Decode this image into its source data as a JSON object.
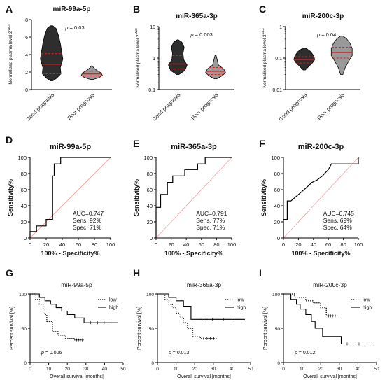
{
  "panels": [
    {
      "letter": "A",
      "type": "violin",
      "title": "miR-99a-5p",
      "ylabel": "Normalised plasma level 2",
      "ylabel_sup": "-ΔCt",
      "scale": "linear",
      "ylim": [
        0,
        8
      ],
      "yticks": [
        "0",
        "2",
        "4",
        "6",
        "8"
      ],
      "pvalue": "p = 0.03",
      "groups": [
        {
          "name": "Good prognosis",
          "fill": "#2e2e2e",
          "median": 2.9,
          "q1": 1.8,
          "q3": 4.1,
          "profile": [
            [
              1.0,
              0.1
            ],
            [
              1.3,
              0.4
            ],
            [
              1.8,
              0.75
            ],
            [
              2.5,
              0.7
            ],
            [
              3.5,
              0.9
            ],
            [
              4.4,
              0.8
            ],
            [
              5.3,
              0.7
            ],
            [
              6.2,
              0.55
            ],
            [
              7.0,
              0.35
            ],
            [
              7.3,
              0.1
            ]
          ]
        },
        {
          "name": "Poor prognosis",
          "fill": "#999999",
          "median": 1.8,
          "q1": 1.55,
          "q3": 2.1,
          "profile": [
            [
              1.15,
              0.1
            ],
            [
              1.35,
              0.55
            ],
            [
              1.6,
              0.85
            ],
            [
              1.9,
              0.75
            ],
            [
              2.2,
              0.4
            ],
            [
              2.5,
              0.15
            ],
            [
              2.7,
              0.05
            ]
          ]
        }
      ]
    },
    {
      "letter": "B",
      "type": "violin",
      "title": "miR-365a-3p",
      "ylabel": "Normalised plasma level 2",
      "ylabel_sup": "-ΔCt",
      "scale": "log",
      "ylim": [
        0.1,
        10
      ],
      "yticks": [
        "0.1",
        "1",
        "10"
      ],
      "pvalue": "p = 0.003",
      "groups": [
        {
          "name": "Good prognosis",
          "fill": "#2e2e2e",
          "median": 0.65,
          "q1": 0.45,
          "q3": 1.2,
          "profile": [
            [
              0.3,
              0.1
            ],
            [
              0.4,
              0.6
            ],
            [
              0.6,
              0.8
            ],
            [
              0.9,
              0.5
            ],
            [
              1.4,
              0.45
            ],
            [
              2.2,
              0.55
            ],
            [
              3.2,
              0.35
            ],
            [
              3.8,
              0.05
            ]
          ]
        },
        {
          "name": "Poor prognosis",
          "fill": "#999999",
          "median": 0.38,
          "q1": 0.3,
          "q3": 0.5,
          "profile": [
            [
              0.22,
              0.1
            ],
            [
              0.28,
              0.6
            ],
            [
              0.35,
              0.85
            ],
            [
              0.45,
              0.7
            ],
            [
              0.6,
              0.25
            ],
            [
              0.85,
              0.15
            ],
            [
              1.2,
              0.05
            ]
          ]
        }
      ]
    },
    {
      "letter": "C",
      "type": "violin",
      "title": "miR-200c-3p",
      "ylabel": "Normalised plasma level 2",
      "ylabel_sup": "-ΔCt",
      "scale": "log",
      "ylim": [
        0.01,
        1
      ],
      "yticks": [
        "0.01",
        "0.1",
        "1"
      ],
      "pvalue": "p = 0.04",
      "groups": [
        {
          "name": "Good prognosis",
          "fill": "#2e2e2e",
          "median": 0.09,
          "q1": 0.07,
          "q3": 0.11,
          "profile": [
            [
              0.042,
              0.1
            ],
            [
              0.055,
              0.4
            ],
            [
              0.07,
              0.7
            ],
            [
              0.09,
              0.9
            ],
            [
              0.12,
              0.8
            ],
            [
              0.16,
              0.55
            ],
            [
              0.2,
              0.2
            ]
          ]
        },
        {
          "name": "Poor prognosis",
          "fill": "#999999",
          "median": 0.15,
          "q1": 0.1,
          "q3": 0.22,
          "profile": [
            [
              0.03,
              0.1
            ],
            [
              0.05,
              0.3
            ],
            [
              0.08,
              0.6
            ],
            [
              0.12,
              0.9
            ],
            [
              0.2,
              0.9
            ],
            [
              0.3,
              0.7
            ],
            [
              0.42,
              0.4
            ],
            [
              0.5,
              0.1
            ]
          ]
        }
      ]
    },
    {
      "letter": "D",
      "type": "roc",
      "title": "miR-99a-5p",
      "xlabel": "100% - Specificity%",
      "ylabel": "Sensitivity%",
      "xlim": [
        0,
        100
      ],
      "ylim": [
        0,
        100
      ],
      "xticks": [
        "0",
        "20",
        "40",
        "60",
        "80",
        "100"
      ],
      "yticks": [
        "0",
        "20",
        "40",
        "60",
        "80",
        "100"
      ],
      "stats": [
        "AUC=0.747",
        "Sens. 92%",
        "Spec. 71%"
      ],
      "x": [
        0,
        0,
        8,
        8,
        20,
        20,
        28,
        28,
        30,
        30,
        38,
        38,
        45,
        45,
        100
      ],
      "y": [
        0,
        8,
        8,
        15,
        15,
        23,
        23,
        77,
        77,
        92,
        92,
        100,
        100,
        100,
        100
      ]
    },
    {
      "letter": "E",
      "type": "roc",
      "title": "miR-365a-3p",
      "xlabel": "100% - Specificity%",
      "ylabel": "Sensitivity%",
      "xlim": [
        0,
        100
      ],
      "ylim": [
        0,
        100
      ],
      "xticks": [
        "0",
        "20",
        "40",
        "60",
        "80",
        "100"
      ],
      "yticks": [
        "0",
        "20",
        "40",
        "60",
        "80",
        "100"
      ],
      "stats": [
        "AUC=0.791",
        "Sens. 77%",
        "Spec. 71%"
      ],
      "x": [
        0,
        0,
        6,
        6,
        15,
        15,
        22,
        22,
        38,
        38,
        55,
        55,
        65,
        65,
        100
      ],
      "y": [
        0,
        38,
        38,
        54,
        54,
        69,
        69,
        77,
        77,
        85,
        85,
        92,
        92,
        100,
        100
      ]
    },
    {
      "letter": "F",
      "type": "roc",
      "title": "miR-200c-3p",
      "xlabel": "100% - Specificity%",
      "ylabel": "Sensitivity%",
      "xlim": [
        0,
        100
      ],
      "ylim": [
        0,
        100
      ],
      "xticks": [
        "0",
        "20",
        "40",
        "60",
        "80",
        "100"
      ],
      "yticks": [
        "0",
        "20",
        "40",
        "60",
        "80",
        "100"
      ],
      "stats": [
        "AUC=0.745",
        "Sens. 69%",
        "Spec. 64%"
      ],
      "x": [
        0,
        0,
        5,
        5,
        10,
        20,
        30,
        38,
        45,
        52,
        60,
        64,
        100,
        100
      ],
      "y": [
        0,
        23,
        23,
        46,
        46,
        54,
        62,
        69,
        72,
        77,
        85,
        92,
        92,
        100
      ]
    },
    {
      "letter": "G",
      "type": "km",
      "title": "miR-99a-5p",
      "xlabel": "Overall survival [months]",
      "ylabel": "Percent survival [%]",
      "xlim": [
        0,
        50
      ],
      "ylim": [
        0,
        100
      ],
      "xticks": [
        "0",
        "10",
        "20",
        "30",
        "40",
        "50"
      ],
      "yticks": [
        "0",
        "50",
        "100"
      ],
      "pvalue": "p = 0.006",
      "series": [
        {
          "name": "low",
          "style": "dotted",
          "x": [
            0,
            3,
            5,
            7,
            8,
            9,
            12,
            15,
            19,
            24,
            29
          ],
          "y": [
            100,
            92,
            85,
            78,
            70,
            60,
            45,
            40,
            35,
            33,
            33
          ]
        },
        {
          "name": "high",
          "style": "solid",
          "x": [
            0,
            5,
            8,
            11,
            14,
            17,
            20,
            24,
            29,
            47
          ],
          "y": [
            100,
            95,
            90,
            85,
            80,
            75,
            70,
            65,
            58,
            58
          ]
        }
      ]
    },
    {
      "letter": "H",
      "type": "km",
      "title": "miR-365a-3p",
      "xlabel": "Overall survival [months]",
      "ylabel": "Percent survival [%]",
      "xlim": [
        0,
        50
      ],
      "ylim": [
        0,
        100
      ],
      "xticks": [
        "0",
        "10",
        "20",
        "30",
        "40",
        "50"
      ],
      "yticks": [
        "0",
        "50",
        "100"
      ],
      "pvalue": "p = 0.013",
      "series": [
        {
          "name": "low",
          "style": "dotted",
          "x": [
            0,
            4,
            6,
            8,
            10,
            12,
            14,
            16,
            19,
            23,
            32
          ],
          "y": [
            100,
            92,
            85,
            80,
            72,
            66,
            58,
            50,
            38,
            35,
            35
          ]
        },
        {
          "name": "high",
          "style": "solid",
          "x": [
            0,
            6,
            10,
            14,
            18,
            47
          ],
          "y": [
            100,
            95,
            90,
            82,
            63,
            63
          ]
        }
      ]
    },
    {
      "letter": "I",
      "type": "km",
      "title": "miR-200c-3p",
      "xlabel": "Overall survival [months]",
      "ylabel": "Percent survival [%]",
      "xlim": [
        0,
        50
      ],
      "ylim": [
        0,
        100
      ],
      "xticks": [
        "0",
        "10",
        "20",
        "30",
        "40",
        "50"
      ],
      "yticks": [
        "0",
        "50",
        "100"
      ],
      "pvalue": "p = 0.012",
      "series": [
        {
          "name": "low",
          "style": "dotted",
          "x": [
            0,
            6,
            12,
            16,
            20,
            23,
            29
          ],
          "y": [
            100,
            95,
            90,
            87,
            80,
            68,
            68
          ]
        },
        {
          "name": "high",
          "style": "solid",
          "x": [
            0,
            4,
            7,
            9,
            12,
            15,
            17,
            21,
            31,
            47
          ],
          "y": [
            100,
            92,
            85,
            78,
            70,
            60,
            50,
            38,
            27,
            27
          ]
        }
      ]
    }
  ]
}
